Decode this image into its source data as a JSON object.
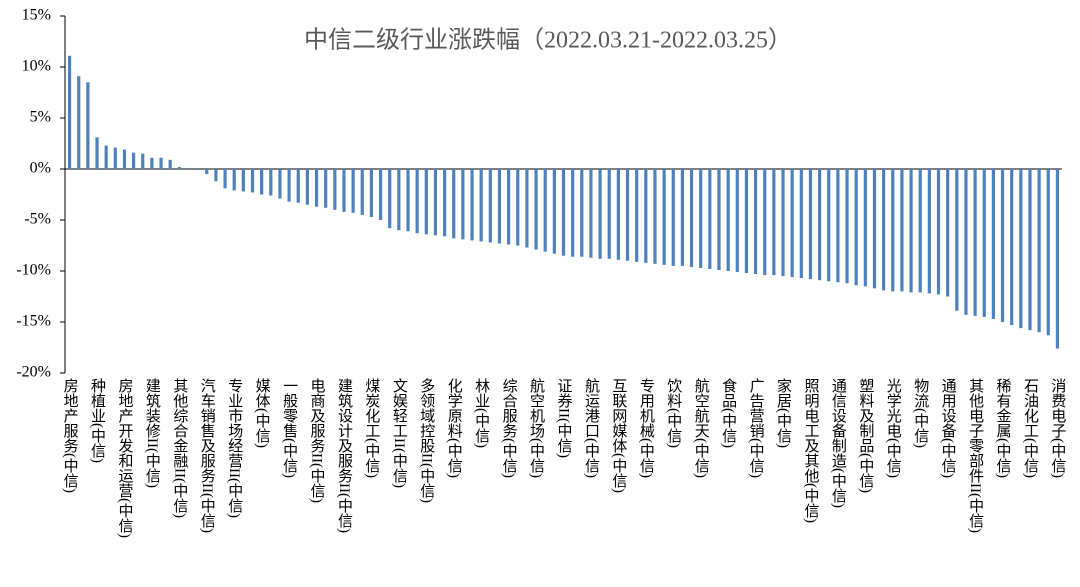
{
  "chart_data": {
    "type": "bar",
    "title": "中信二级行业涨跌幅（2022.03.21-2022.03.25）",
    "categories": [
      "房地产服务(中信)",
      null,
      null,
      "种植业(中信)",
      null,
      null,
      "房地产开发和运营(中信)",
      null,
      null,
      "建筑装修II(中信)",
      null,
      null,
      "其他综合金融II(中信)",
      null,
      null,
      "汽车销售及服务II(中信)",
      null,
      null,
      "专业市场经营II(中信)",
      null,
      null,
      "媒体(中信)",
      null,
      null,
      "一般零售(中信)",
      null,
      null,
      "电商及服务II(中信)",
      null,
      null,
      "建筑设计及服务II(中信)",
      null,
      null,
      "煤炭化工(中信)",
      null,
      null,
      "文娱轻工II(中信)",
      null,
      null,
      "多领域控股II(中信)",
      null,
      null,
      "化学原料(中信)",
      null,
      null,
      "林业(中信)",
      null,
      null,
      "综合服务(中信)",
      null,
      null,
      "航空机场(中信)",
      null,
      null,
      "证券II(中信)",
      null,
      null,
      "航运港口(中信)",
      null,
      null,
      "互联网媒体(中信)",
      null,
      null,
      "专用机械(中信)",
      null,
      null,
      "饮料(中信)",
      null,
      null,
      "航空航天(中信)",
      null,
      null,
      "食品(中信)",
      null,
      null,
      "广告营销(中信)",
      null,
      null,
      "家居(中信)",
      null,
      null,
      "照明电工及其他(中信)",
      null,
      null,
      "通信设备制造(中信)",
      null,
      null,
      "塑料及制品(中信)",
      null,
      null,
      "光学光电(中信)",
      null,
      null,
      "物流(中信)",
      null,
      null,
      "通用设备(中信)",
      null,
      null,
      "其他电子零部件II(中信)",
      null,
      null,
      "稀有金属(中信)",
      null,
      null,
      "石油化工(中信)",
      null,
      null,
      "消费电子(中信)"
    ],
    "values": [
      11.1,
      9.1,
      8.5,
      3.1,
      2.3,
      2.1,
      1.9,
      1.6,
      1.5,
      1.1,
      1.1,
      0.9,
      0.2,
      0.0,
      -0.1,
      -0.5,
      -1.2,
      -1.9,
      -2.1,
      -2.2,
      -2.3,
      -2.5,
      -2.6,
      -2.9,
      -3.2,
      -3.3,
      -3.5,
      -3.7,
      -3.8,
      -4.0,
      -4.2,
      -4.3,
      -4.5,
      -4.7,
      -5.0,
      -5.8,
      -6.0,
      -6.1,
      -6.3,
      -6.4,
      -6.5,
      -6.6,
      -6.8,
      -6.9,
      -7.0,
      -7.1,
      -7.2,
      -7.3,
      -7.4,
      -7.5,
      -7.7,
      -7.9,
      -8.1,
      -8.3,
      -8.5,
      -8.6,
      -8.6,
      -8.7,
      -8.8,
      -8.8,
      -8.9,
      -9.0,
      -9.1,
      -9.2,
      -9.3,
      -9.4,
      -9.5,
      -9.5,
      -9.6,
      -9.7,
      -9.8,
      -9.9,
      -10.0,
      -10.1,
      -10.2,
      -10.3,
      -10.4,
      -10.4,
      -10.5,
      -10.6,
      -10.7,
      -10.8,
      -10.9,
      -11.0,
      -11.1,
      -11.2,
      -11.4,
      -11.5,
      -11.7,
      -11.9,
      -12.0,
      -12.0,
      -12.1,
      -12.1,
      -12.2,
      -12.3,
      -12.5,
      -13.9,
      -14.3,
      -14.4,
      -14.5,
      -14.7,
      -15.0,
      -15.3,
      -15.6,
      -15.8,
      -16.0,
      -16.3,
      -17.6
    ],
    "color": "#4f81bd",
    "ylim": [
      -20,
      15
    ],
    "yticks": [
      {
        "value": -20,
        "label": "-20%"
      },
      {
        "value": -15,
        "label": "-15%"
      },
      {
        "value": -10,
        "label": "-10%"
      },
      {
        "value": -5,
        "label": "-5%"
      },
      {
        "value": 0,
        "label": "0%"
      },
      {
        "value": 5,
        "label": "5%"
      },
      {
        "value": 10,
        "label": "10%"
      },
      {
        "value": 15,
        "label": "15%"
      }
    ],
    "grid": false
  }
}
